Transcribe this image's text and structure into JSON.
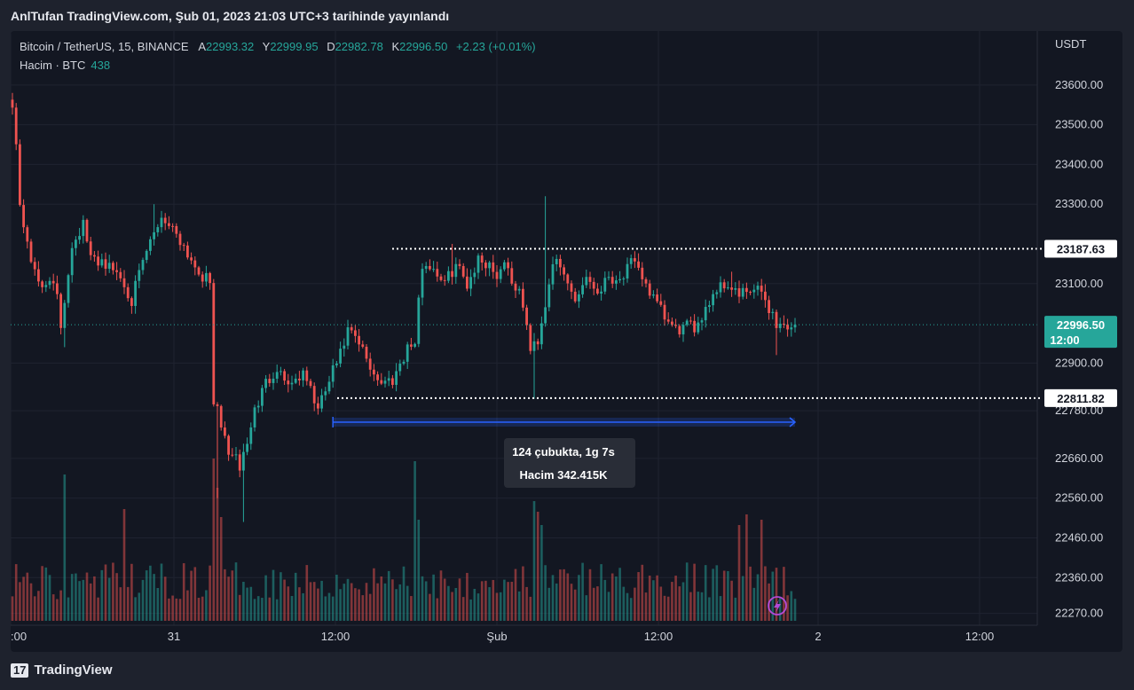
{
  "header": {
    "title": "AnlTufan TradingView.com, Şub 01, 2023 21:03 UTC+3 tarihinde yayınlandı"
  },
  "legend": {
    "symbol": "Bitcoin / TetherUS, 15, BINANCE",
    "open_label": "A",
    "open": "22993.32",
    "high_label": "Y",
    "high": "22999.95",
    "low_label": "D",
    "low": "22982.78",
    "close_label": "K",
    "close": "22996.50",
    "change": "+2.23 (+0.01%)",
    "volume_label": "Hacim · BTC",
    "volume": "438"
  },
  "price_axis": {
    "currency": "USDT",
    "ticks": [
      "23600.00",
      "23500.00",
      "23400.00",
      "23300.00",
      "23100.00",
      "22900.00",
      "22780.00",
      "22660.00",
      "22560.00",
      "22460.00",
      "22360.00",
      "22270.00"
    ]
  },
  "time_axis": {
    "ticks": [
      ":00",
      "31",
      "12:00",
      "Şub",
      "12:00",
      "2",
      "12:00"
    ]
  },
  "price_labels": {
    "upper_level": "23187.63",
    "lower_level": "22811.82",
    "last_price": "22996.50",
    "countdown": "12:00"
  },
  "measure": {
    "line1": "124 çubukta, 1g 7s",
    "line2": "Hacim 342.415K"
  },
  "colors": {
    "up": "#26a69a",
    "down": "#ef5350",
    "background": "#131722",
    "measure": "#2962ff"
  },
  "footer": {
    "brand": "TradingView",
    "logo_text": "17"
  },
  "icons": {
    "flash": "lightning-icon"
  },
  "chart_data": {
    "type": "candlestick",
    "anchors": [
      [
        0,
        23560
      ],
      [
        1,
        23450
      ],
      [
        2,
        23290
      ],
      [
        4,
        23210
      ],
      [
        6,
        23120
      ],
      [
        8,
        23090
      ],
      [
        10,
        23120
      ],
      [
        12,
        23060
      ],
      [
        13,
        22990
      ],
      [
        16,
        23200
      ],
      [
        19,
        23250
      ],
      [
        21,
        23160
      ],
      [
        24,
        23160
      ],
      [
        26,
        23140
      ],
      [
        28,
        23130
      ],
      [
        30,
        23100
      ],
      [
        32,
        23060
      ],
      [
        36,
        23180
      ],
      [
        40,
        23270
      ],
      [
        44,
        23230
      ],
      [
        48,
        23160
      ],
      [
        51,
        23120
      ],
      [
        53,
        23100
      ],
      [
        54,
        22810
      ],
      [
        56,
        22740
      ],
      [
        58,
        22680
      ],
      [
        61,
        22640
      ],
      [
        63,
        22700
      ],
      [
        65,
        22780
      ],
      [
        68,
        22850
      ],
      [
        71,
        22890
      ],
      [
        73,
        22860
      ],
      [
        75,
        22850
      ],
      [
        77,
        22870
      ],
      [
        79,
        22860
      ],
      [
        82,
        22780
      ],
      [
        84,
        22830
      ],
      [
        86,
        22880
      ],
      [
        88,
        22920
      ],
      [
        90,
        22980
      ],
      [
        92,
        22960
      ],
      [
        94,
        22930
      ],
      [
        96,
        22890
      ],
      [
        99,
        22850
      ],
      [
        102,
        22860
      ],
      [
        104,
        22900
      ],
      [
        106,
        22940
      ],
      [
        108,
        22950
      ],
      [
        110,
        23150
      ],
      [
        113,
        23140
      ],
      [
        116,
        23100
      ],
      [
        119,
        23150
      ],
      [
        122,
        23100
      ],
      [
        125,
        23160
      ],
      [
        128,
        23150
      ],
      [
        130,
        23120
      ],
      [
        132,
        23160
      ],
      [
        134,
        23110
      ],
      [
        137,
        23050
      ],
      [
        139,
        22930
      ],
      [
        141,
        22960
      ],
      [
        143,
        23050
      ],
      [
        145,
        23160
      ],
      [
        148,
        23120
      ],
      [
        151,
        23060
      ],
      [
        154,
        23120
      ],
      [
        157,
        23080
      ],
      [
        160,
        23120
      ],
      [
        163,
        23110
      ],
      [
        166,
        23150
      ],
      [
        169,
        23120
      ],
      [
        172,
        23060
      ],
      [
        174,
        23030
      ],
      [
        176,
        23000
      ],
      [
        178,
        22980
      ],
      [
        180,
        22990
      ],
      [
        183,
        22990
      ],
      [
        186,
        23040
      ],
      [
        189,
        23090
      ],
      [
        192,
        23100
      ],
      [
        195,
        23070
      ],
      [
        198,
        23080
      ],
      [
        201,
        23080
      ],
      [
        203,
        23040
      ],
      [
        205,
        23000
      ],
      [
        208,
        22990
      ],
      [
        210,
        22997
      ]
    ],
    "spikes": [
      [
        0,
        "high",
        23580
      ],
      [
        14,
        "low",
        22940
      ],
      [
        38,
        "high",
        23300
      ],
      [
        55,
        "low",
        22560
      ],
      [
        62,
        "low",
        22500
      ],
      [
        118,
        "high",
        23200
      ],
      [
        140,
        "low",
        22810
      ],
      [
        143,
        "high",
        23320
      ],
      [
        193,
        "high",
        23130
      ],
      [
        205,
        "low",
        22920
      ]
    ],
    "volume_spikes": {
      "14": 0.55,
      "30": 0.42,
      "54": 0.61,
      "55": 0.5,
      "56": 0.39,
      "108": 0.6,
      "109": 0.38,
      "140": 0.45,
      "141": 0.41,
      "142": 0.36,
      "195": 0.36,
      "197": 0.4,
      "201": 0.38
    },
    "y_range": [
      22240,
      23680
    ],
    "levels": [
      23187.63,
      22811.82
    ],
    "last_price": 22996.5,
    "measure_range": {
      "from_bar": 86,
      "to_bar": 210
    }
  }
}
